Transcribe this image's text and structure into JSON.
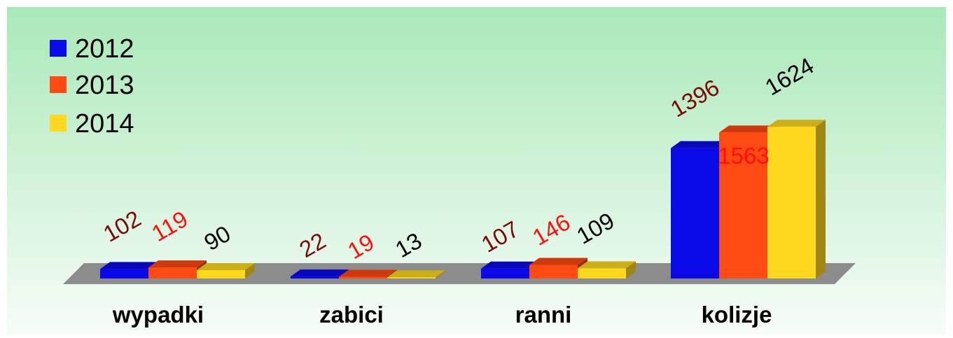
{
  "chart_data": {
    "type": "bar",
    "style": "3d-clustered-column",
    "title": "",
    "xlabel": "",
    "ylabel": "",
    "categories": [
      "wypadki",
      "zabici",
      "ranni",
      "kolizje"
    ],
    "series": [
      {
        "name": "2012",
        "values": [
          102,
          22,
          107,
          1396
        ],
        "color": "#0a0ae8",
        "label_color": "#7a0a0a"
      },
      {
        "name": "2013",
        "values": [
          119,
          19,
          146,
          1563
        ],
        "color": "#ff4a12",
        "label_color": "#ff1010"
      },
      {
        "name": "2014",
        "values": [
          90,
          13,
          109,
          1624
        ],
        "color": "#ffd91f",
        "label_color": "#000000"
      }
    ],
    "ylim": [
      0,
      1700
    ],
    "grid": false,
    "legend_position": "top-left",
    "background": {
      "top": "#a9e9b8",
      "bottom": "#f7fcf8"
    },
    "floor_color": "#8c8c8c"
  }
}
